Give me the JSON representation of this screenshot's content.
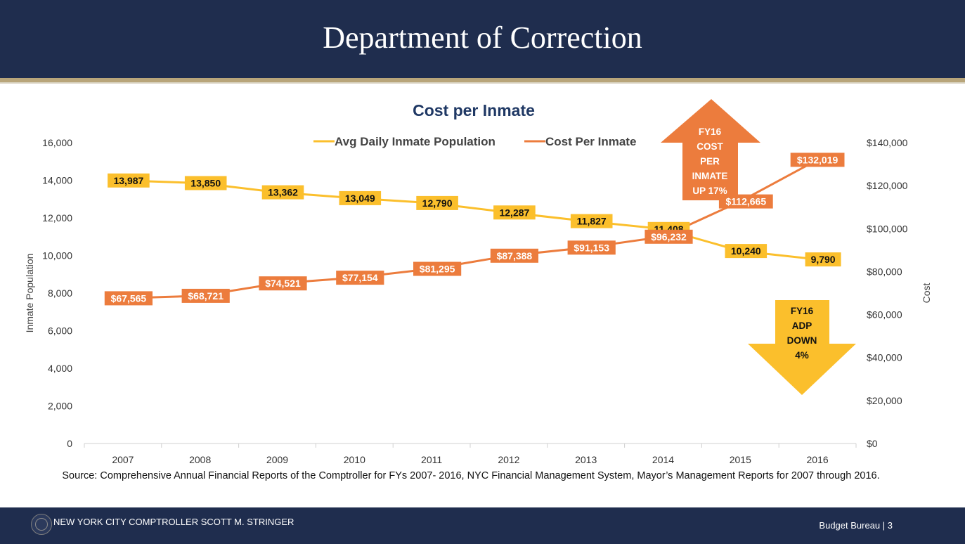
{
  "header": {
    "title": "Department of Correction"
  },
  "chart_data": {
    "type": "line",
    "title": "Cost per Inmate",
    "x": [
      "2007",
      "2008",
      "2009",
      "2010",
      "2011",
      "2012",
      "2013",
      "2014",
      "2015",
      "2016"
    ],
    "series": [
      {
        "name": "Avg Daily Inmate Population",
        "axis": "left",
        "color": "#fbbf2c",
        "values": [
          13987,
          13850,
          13362,
          13049,
          12790,
          12287,
          11827,
          11408,
          10240,
          9790
        ],
        "labels": [
          "13,987",
          "13,850",
          "13,362",
          "13,049",
          "12,790",
          "12,287",
          "11,827",
          "11,408",
          "10,240",
          "9,790"
        ]
      },
      {
        "name": "Cost Per Inmate",
        "axis": "right",
        "color": "#ec7c3d",
        "values": [
          67565,
          68721,
          74521,
          77154,
          81295,
          87388,
          91153,
          96232,
          112665,
          132019
        ],
        "labels": [
          "$67,565",
          "$68,721",
          "$74,521",
          "$77,154",
          "$81,295",
          "$87,388",
          "$91,153",
          "$96,232",
          "$112,665",
          "$132,019"
        ]
      }
    ],
    "ylabel": "Inmate Population",
    "y2label": "Cost",
    "ylim": [
      0,
      16000
    ],
    "y2lim": [
      0,
      140000
    ],
    "yticks": [
      "0",
      "2,000",
      "4,000",
      "6,000",
      "8,000",
      "10,000",
      "12,000",
      "14,000",
      "16,000"
    ],
    "y2ticks": [
      "$0",
      "$20,000",
      "$40,000",
      "$60,000",
      "$80,000",
      "$100,000",
      "$120,000",
      "$140,000"
    ],
    "legend_position": "top-center",
    "grid": false,
    "annotations": [
      {
        "name": "cost-up",
        "lines": [
          "FY16",
          "COST",
          "PER",
          "INMATE",
          "UP 17%"
        ],
        "color": "#ec7c3d",
        "direction": "up"
      },
      {
        "name": "adp-down",
        "lines": [
          "FY16",
          "ADP",
          "DOWN",
          "4%"
        ],
        "color": "#fbbf2c",
        "direction": "down"
      }
    ]
  },
  "source_note": "Source: Comprehensive Annual Financial Reports of the Comptroller for FYs 2007- 2016, NYC Financial Management System, Mayor’s Management Reports for 2007 through 2016.",
  "footer": {
    "left_text": "NEW YORK CITY COMPTROLLER SCOTT M. STRINGER",
    "right_text": "Budget Bureau | 3"
  }
}
